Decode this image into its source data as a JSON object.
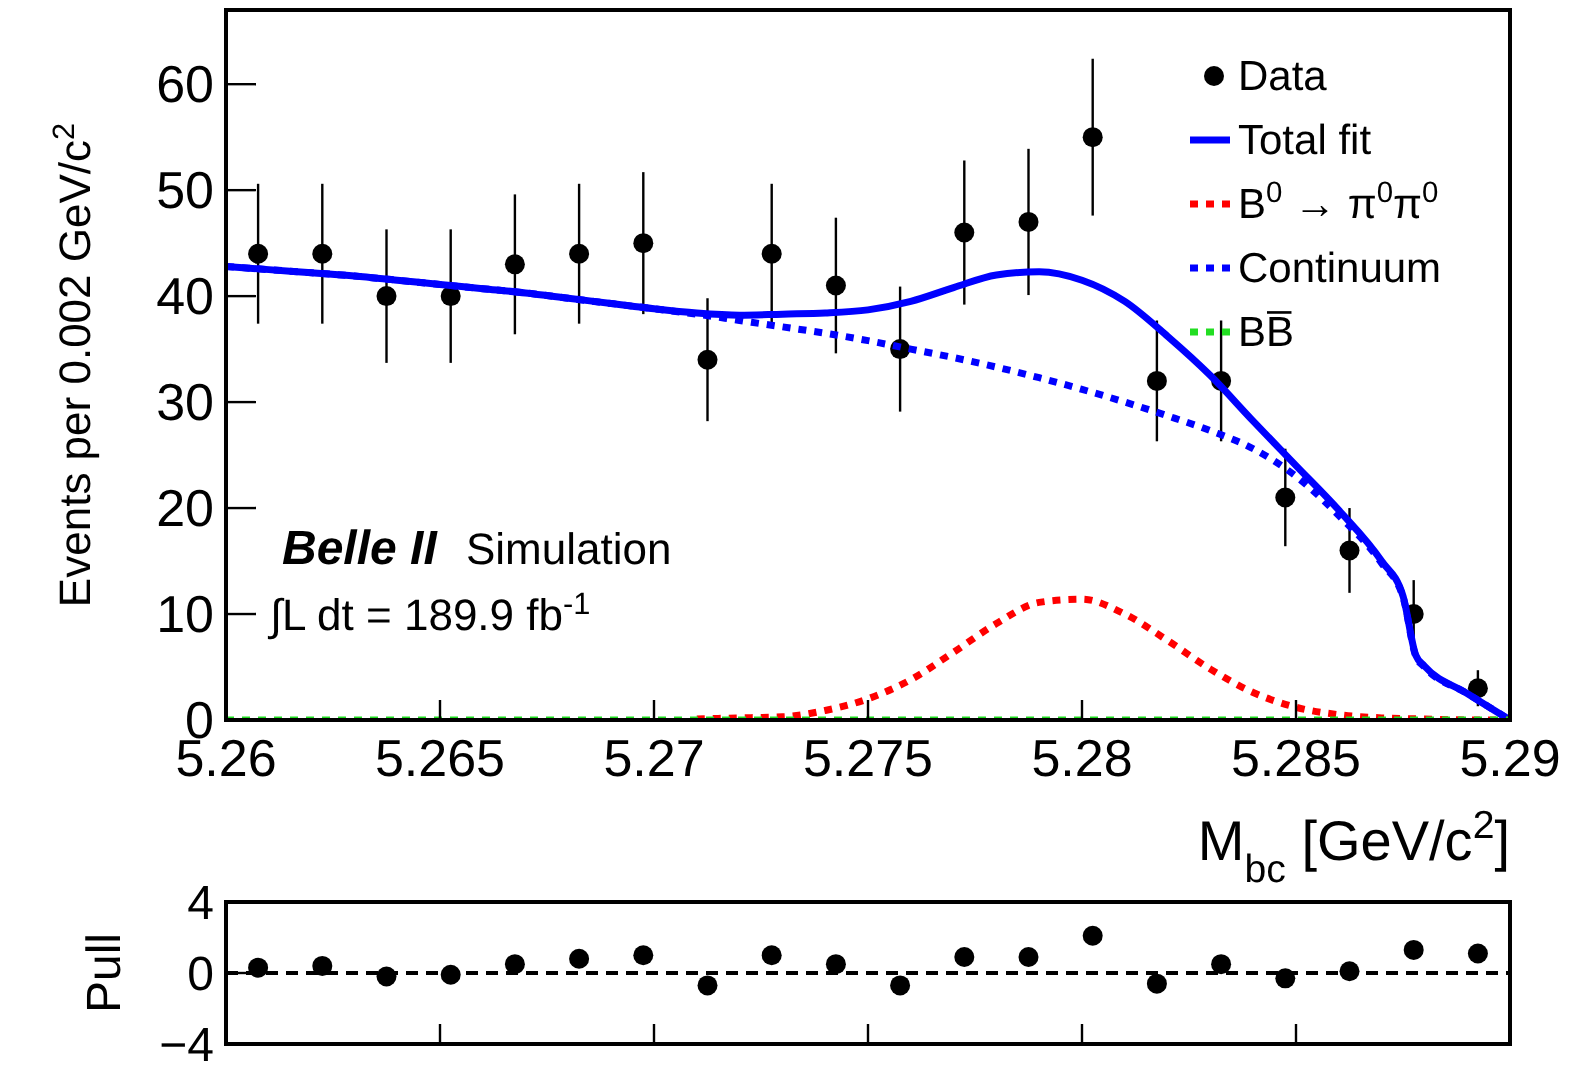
{
  "chart_data": [
    {
      "type": "line",
      "xlabel": "M$_{bc}$ [GeV/c$^{2}$]",
      "ylabel": "Events per 0.002 GeV/c$^{2}$",
      "xlim": [
        5.26,
        5.29
      ],
      "xticks": [
        5.26,
        5.265,
        5.27,
        5.275,
        5.28,
        5.285,
        5.29
      ],
      "ylim": [
        0,
        67
      ],
      "yticks": [
        0,
        10,
        20,
        30,
        40,
        50,
        60
      ],
      "legend": "top right",
      "annotations": [
        "Belle II",
        "Simulation",
        "∫L dt = 189.9 fb$^{-1}$"
      ],
      "series": [
        {
          "name": "Data",
          "type": "scatter",
          "marker": "circle",
          "color": "#000000",
          "x": [
            5.26075,
            5.26225,
            5.26375,
            5.26525,
            5.26675,
            5.26825,
            5.26975,
            5.27125,
            5.27275,
            5.27425,
            5.27575,
            5.27725,
            5.27875,
            5.28025,
            5.28175,
            5.28325,
            5.28475,
            5.28625,
            5.28775,
            5.28925
          ],
          "values": [
            44,
            44,
            40,
            40,
            43,
            44,
            45,
            34,
            44,
            41,
            35,
            46,
            47,
            55,
            32,
            32,
            21,
            16,
            10,
            3
          ],
          "errors": [
            6.6,
            6.6,
            6.3,
            6.3,
            6.6,
            6.6,
            6.7,
            5.8,
            6.6,
            6.4,
            5.9,
            6.8,
            6.9,
            7.4,
            5.7,
            5.7,
            4.6,
            4,
            3.2,
            1.7
          ]
        },
        {
          "name": "Total fit",
          "line_style": "solid",
          "color": "#0000ff",
          "x": [
            5.26,
            5.261,
            5.262,
            5.263,
            5.264,
            5.265,
            5.266,
            5.267,
            5.268,
            5.269,
            5.27,
            5.271,
            5.272,
            5.273,
            5.274,
            5.275,
            5.276,
            5.277,
            5.278,
            5.279,
            5.28,
            5.281,
            5.282,
            5.283,
            5.284,
            5.285,
            5.286,
            5.287,
            5.2875,
            5.2878,
            5.288,
            5.289,
            5.29
          ],
          "values": [
            42.8,
            42.5,
            42.2,
            41.9,
            41.5,
            41.1,
            40.7,
            40.3,
            39.8,
            39.3,
            38.8,
            38.4,
            38.2,
            38.3,
            38.4,
            38.7,
            39.5,
            40.8,
            42.0,
            42.3,
            41.5,
            39.5,
            36.2,
            32.5,
            28.2,
            24.0,
            19.8,
            15.0,
            11.7,
            6.1,
            5.1,
            2.5,
            0
          ]
        },
        {
          "name": "B$^{0}$ → π$^{0}$π$^{0}$",
          "type": "line",
          "line_style": "dotted",
          "color": "#ff0000",
          "x": [
            5.271,
            5.272,
            5.273,
            5.274,
            5.275,
            5.276,
            5.277,
            5.278,
            5.279,
            5.28,
            5.281,
            5.282,
            5.283,
            5.284,
            5.285,
            5.286,
            5.287,
            5.288,
            5.289,
            5.29
          ],
          "values": [
            0.1,
            0.2,
            0.3,
            0.9,
            2.0,
            3.8,
            6.4,
            9.1,
            11.1,
            11.4,
            10.0,
            7.5,
            4.8,
            2.6,
            1.2,
            0.5,
            0.2,
            0.1,
            0,
            0
          ]
        },
        {
          "name": "Continuum",
          "type": "line",
          "line_style": "dotted",
          "color": "#0000ff",
          "x": [
            5.26,
            5.261,
            5.262,
            5.263,
            5.264,
            5.265,
            5.266,
            5.267,
            5.268,
            5.269,
            5.27,
            5.271,
            5.272,
            5.273,
            5.274,
            5.275,
            5.276,
            5.277,
            5.278,
            5.279,
            5.28,
            5.281,
            5.282,
            5.283,
            5.284,
            5.285,
            5.286,
            5.287,
            5.2875,
            5.2878,
            5.288,
            5.289,
            5.29
          ],
          "values": [
            42.8,
            42.5,
            42.2,
            41.9,
            41.5,
            41.1,
            40.7,
            40.3,
            39.8,
            39.3,
            38.8,
            38.3,
            37.7,
            37.1,
            36.5,
            35.8,
            35.0,
            34.2,
            33.3,
            32.3,
            31.2,
            30.0,
            28.7,
            27.3,
            25.6,
            23.0,
            19.3,
            14.8,
            11.6,
            6.0,
            5.0,
            2.5,
            0
          ]
        },
        {
          "name": "BB̅",
          "type": "line",
          "line_style": "dotted",
          "color": "#22dd22",
          "x": [
            5.26,
            5.29
          ],
          "values": [
            0,
            0
          ]
        }
      ]
    },
    {
      "type": "scatter",
      "ylabel": "Pull",
      "xlim": [
        5.26,
        5.29
      ],
      "xticks": [
        {
          "value": 5.26,
          "label": null
        },
        {
          "value": 5.265,
          "label": null
        },
        {
          "value": 5.27,
          "label": null
        },
        {
          "value": 5.275,
          "label": null
        },
        {
          "value": 5.28,
          "label": null
        },
        {
          "value": 5.285,
          "label": null
        },
        {
          "value": 5.29,
          "label": null
        }
      ],
      "ylim": [
        -4,
        4
      ],
      "yticks": [
        {
          "value": -4,
          "label": "−4"
        },
        0,
        4
      ],
      "tick_labels": "y",
      "marker": "circle",
      "ref_lines": [
        {
          "axis": "y",
          "value": 0,
          "line_style": "dashed",
          "color": "#000000"
        }
      ],
      "series": [
        {
          "color": "#000000",
          "x": [
            5.26075,
            5.26225,
            5.26375,
            5.26525,
            5.26675,
            5.26825,
            5.26975,
            5.27125,
            5.27275,
            5.27425,
            5.27575,
            5.27725,
            5.27875,
            5.28025,
            5.28175,
            5.28325,
            5.28475,
            5.28625,
            5.28775,
            5.28925
          ],
          "values": [
            0.3,
            0.4,
            -0.2,
            -0.1,
            0.5,
            0.8,
            1.0,
            -0.7,
            1.0,
            0.5,
            -0.7,
            0.9,
            0.9,
            2.1,
            -0.6,
            0.5,
            -0.3,
            0.1,
            1.3,
            1.1
          ]
        }
      ]
    }
  ]
}
